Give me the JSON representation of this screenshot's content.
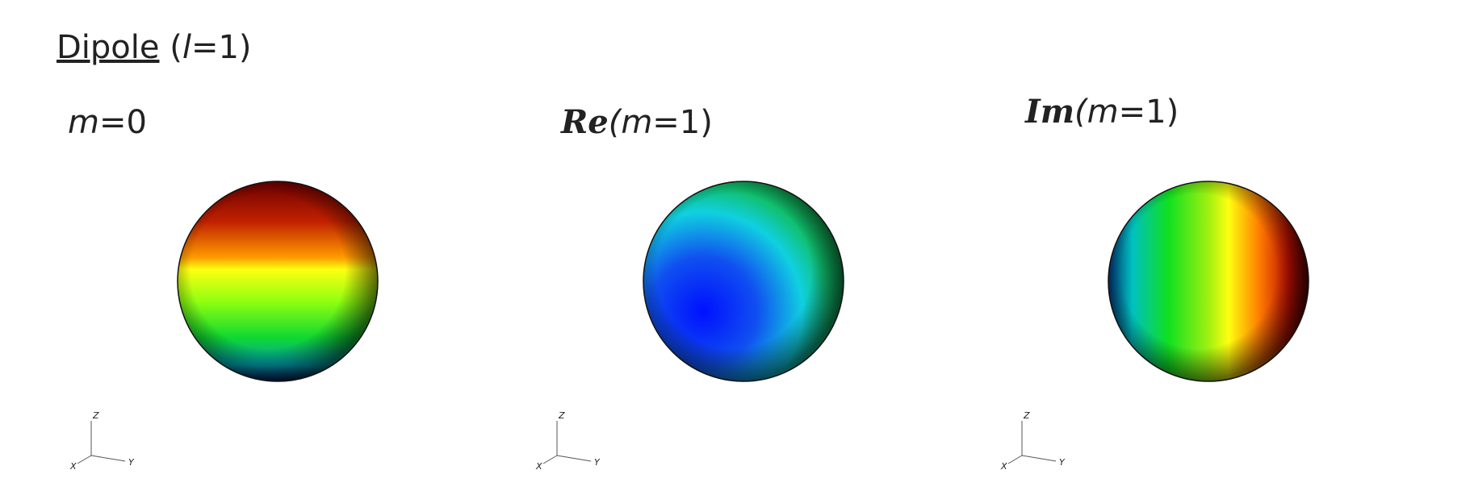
{
  "header": {
    "title": "Dipole",
    "suffix_parts": [
      {
        "text": "(",
        "style": "normal"
      },
      {
        "text": "l",
        "style": "italic"
      },
      {
        "text": "=1)",
        "style": "normal"
      }
    ]
  },
  "panels": [
    {
      "label_parts": [
        {
          "text": "m",
          "style": "italic"
        },
        {
          "text": "=0",
          "style": "normal"
        }
      ]
    },
    {
      "label_parts": [
        {
          "text": "Re",
          "style": "script"
        },
        {
          "text": "(",
          "style": "italic"
        },
        {
          "text": "m",
          "style": "italic"
        },
        {
          "text": "=1)",
          "style": "normal"
        }
      ]
    },
    {
      "label_parts": [
        {
          "text": "Im",
          "style": "script"
        },
        {
          "text": "(",
          "style": "italic"
        },
        {
          "text": "m",
          "style": "italic"
        },
        {
          "text": "=1)",
          "style": "normal"
        }
      ]
    }
  ],
  "axis_labels": {
    "z": "Z",
    "x": "X",
    "y": "Y"
  }
}
